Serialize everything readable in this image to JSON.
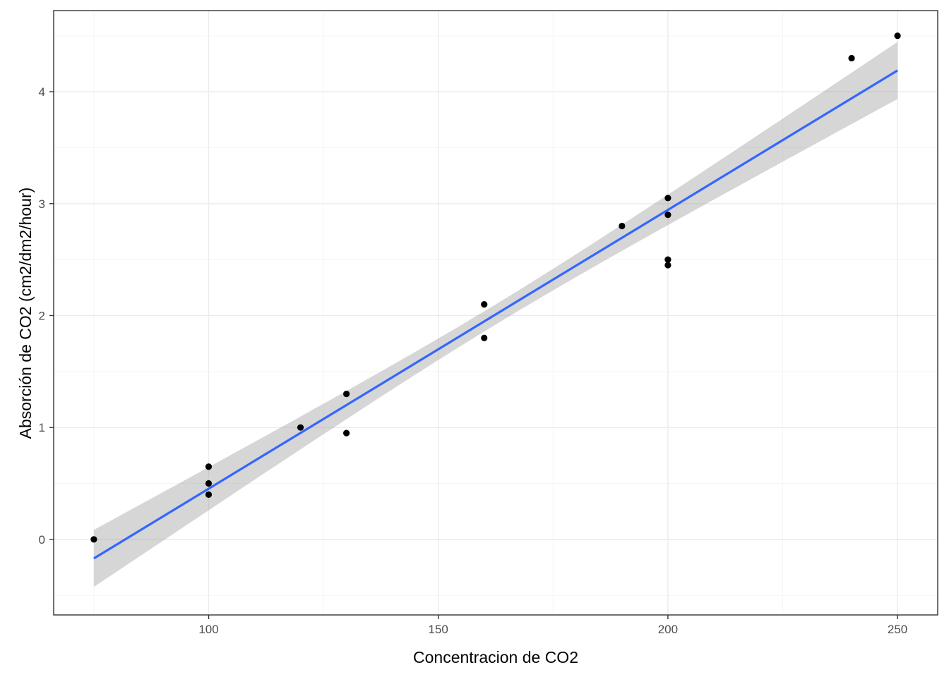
{
  "chart_data": {
    "type": "scatter",
    "title": "",
    "xlabel": "Concentracion de CO2",
    "ylabel": "Absorción de CO2 (cm2/dm2/hour)",
    "xlim": [
      66.25,
      258.75
    ],
    "ylim": [
      -0.675,
      4.725
    ],
    "x_ticks": [
      100,
      150,
      200,
      250
    ],
    "y_ticks": [
      0,
      1,
      2,
      3,
      4
    ],
    "x_tick_labels": [
      "100",
      "150",
      "200",
      "250"
    ],
    "y_tick_labels": [
      "0",
      "1",
      "2",
      "3",
      "4"
    ],
    "grid": true,
    "legend": "none",
    "series": [
      {
        "kind": "points",
        "x": [
          75,
          100,
          100,
          100,
          120,
          130,
          130,
          160,
          160,
          190,
          200,
          200,
          200,
          200,
          240,
          250
        ],
        "y": [
          0.0,
          0.65,
          0.5,
          0.4,
          1.0,
          0.95,
          1.3,
          1.8,
          2.1,
          2.8,
          2.45,
          2.5,
          2.9,
          3.05,
          4.3,
          4.5
        ]
      },
      {
        "kind": "linear-fit",
        "x": [
          75,
          250
        ],
        "y": [
          -0.17,
          4.19
        ],
        "ci_lower_start": -0.42,
        "ci_upper_start": 0.09,
        "ci_lower_mid": 1.61,
        "ci_upper_mid": 1.79,
        "ci_lower_end": 3.94,
        "ci_upper_end": 4.45
      }
    ],
    "colors": {
      "points": "#000000",
      "line": "#3366ff",
      "ribbon": "#999999"
    }
  }
}
